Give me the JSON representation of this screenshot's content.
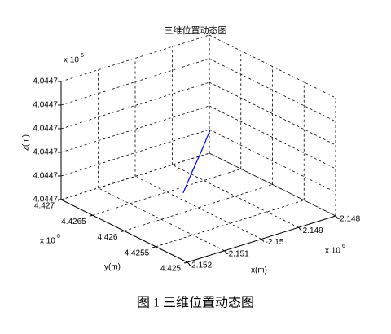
{
  "chart_data": {
    "type": "line3d",
    "title": "三维位置动态图",
    "caption": "图 1 三维位置动态图",
    "xlabel": "x(m)",
    "ylabel": "y(m)",
    "zlabel": "z(m)",
    "x_multiplier": {
      "text": "x 10",
      "power": "6"
    },
    "y_multiplier": {
      "text": "x 10",
      "power": "6"
    },
    "z_multiplier": {
      "text": "x 10",
      "power": "6"
    },
    "xlim": [
      -2.152,
      -2.148
    ],
    "xticks": [
      -2.152,
      -2.151,
      -2.15,
      -2.149,
      -2.148
    ],
    "ylim": [
      4.425,
      4.427
    ],
    "yticks": [
      4.425,
      4.4255,
      4.426,
      4.4265,
      4.427
    ],
    "zlim": [
      4.04466,
      4.044735
    ],
    "zticks": [
      {
        "value": 4.04466,
        "label": "4.0447"
      },
      {
        "value": 4.044675,
        "label": "4.0447"
      },
      {
        "value": 4.04469,
        "label": "4.0447"
      },
      {
        "value": 4.044705,
        "label": "4.0447"
      },
      {
        "value": 4.04472,
        "label": "4.0447"
      },
      {
        "value": 4.044735,
        "label": "4.0447"
      }
    ],
    "grid": true,
    "series": [
      {
        "color": "#0000ff",
        "x": [
          -2.14996,
          -2.14984,
          -2.14971,
          -2.14959
        ],
        "y": [
          4.426264,
          4.426195,
          4.426125,
          4.426056
        ],
        "z": [
          4.0446638,
          4.0446775,
          4.044691,
          4.044705
        ]
      }
    ]
  }
}
